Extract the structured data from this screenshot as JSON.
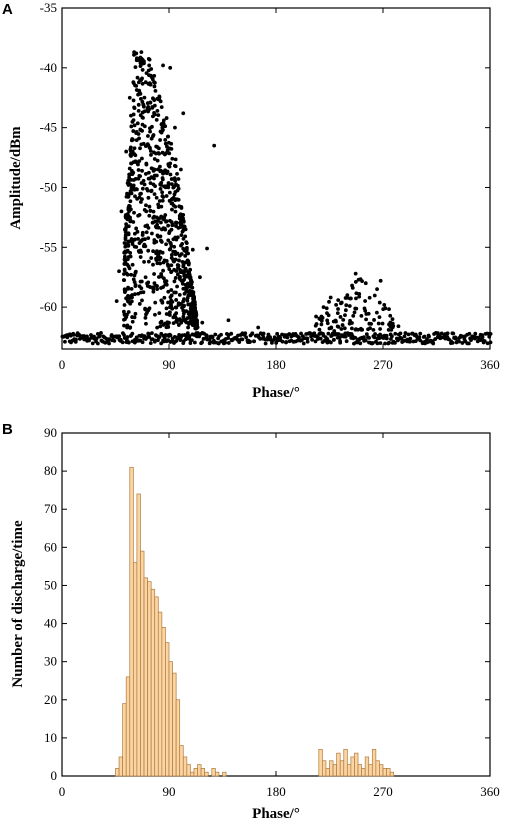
{
  "chart_data": [
    {
      "panel": "A",
      "type": "scatter",
      "xlabel": "Phase/°",
      "ylabel": "Amplitude/dBm",
      "xlim": [
        0,
        360
      ],
      "ylim": [
        -63.5,
        -35
      ],
      "xticks": [
        0,
        90,
        180,
        270,
        360
      ],
      "yticks": [
        -35,
        -40,
        -45,
        -50,
        -55,
        -60
      ],
      "baseline": -62.7,
      "clusters": [
        {
          "phase_range": [
            50,
            120
          ],
          "amplitude_range": [
            -62,
            -38.5
          ],
          "peak_phase": 72
        },
        {
          "phase_range": [
            205,
            280
          ],
          "amplitude_range": [
            -62,
            -57
          ]
        }
      ],
      "points": [
        [
          62,
          -38.8
        ],
        [
          63,
          -39.2
        ],
        [
          66,
          -39.6
        ],
        [
          75,
          -40.1
        ],
        [
          85,
          -39.8
        ],
        [
          91,
          -40.0
        ],
        [
          60,
          -41.2
        ],
        [
          57,
          -42.5
        ],
        [
          58,
          -44.0
        ],
        [
          66,
          -45.2
        ],
        [
          72,
          -43.5
        ],
        [
          83,
          -42.8
        ],
        [
          88,
          -44.2
        ],
        [
          95,
          -45.0
        ],
        [
          100,
          -48.5
        ],
        [
          97,
          -51.0
        ],
        [
          104,
          -53.5
        ],
        [
          110,
          -55.2
        ],
        [
          116,
          -57.5
        ],
        [
          122,
          -55.1
        ],
        [
          128,
          -46.5
        ],
        [
          102,
          -43.8
        ],
        [
          54,
          -47.0
        ],
        [
          50,
          -52.0
        ],
        [
          48,
          -57.0
        ],
        [
          46,
          -59.5
        ],
        [
          53,
          -61.0
        ],
        [
          70,
          -60.2
        ],
        [
          110,
          -61.5
        ],
        [
          113,
          -60.6
        ],
        [
          118,
          -61.3
        ],
        [
          140,
          -61.1
        ],
        [
          165,
          -61.7
        ],
        [
          78,
          -49.0
        ],
        [
          86,
          -52.5
        ],
        [
          92,
          -56.5
        ],
        [
          80,
          -58.5
        ],
        [
          64,
          -54.3
        ],
        [
          68,
          -50.1
        ],
        [
          74,
          -46.7
        ],
        [
          96,
          -59.4
        ],
        [
          106,
          -58.1
        ],
        [
          217,
          -61.0
        ],
        [
          220,
          -60.0
        ],
        [
          226,
          -59.2
        ],
        [
          232,
          -60.5
        ],
        [
          240,
          -59.0
        ],
        [
          244,
          -58.2
        ],
        [
          247,
          -57.2
        ],
        [
          250,
          -58.9
        ],
        [
          255,
          -60.3
        ],
        [
          260,
          -61.4
        ],
        [
          265,
          -58.5
        ],
        [
          268,
          -57.8
        ],
        [
          272,
          -60.1
        ],
        [
          278,
          -61.0
        ],
        [
          283,
          -61.6
        ],
        [
          236,
          -61.5
        ],
        [
          229,
          -62.0
        ]
      ]
    },
    {
      "panel": "B",
      "type": "bar",
      "xlabel": "Phase/°",
      "ylabel": "Number of discharge/time",
      "xlim": [
        0,
        360
      ],
      "ylim": [
        0,
        90
      ],
      "xticks": [
        0,
        90,
        180,
        270,
        360
      ],
      "yticks": [
        0,
        10,
        20,
        30,
        40,
        50,
        60,
        70,
        80,
        90
      ],
      "bin_width": 3,
      "bins": [
        [
          45,
          2
        ],
        [
          48,
          5
        ],
        [
          51,
          19
        ],
        [
          54,
          26
        ],
        [
          57,
          81
        ],
        [
          60,
          56
        ],
        [
          63,
          74
        ],
        [
          66,
          59
        ],
        [
          69,
          52
        ],
        [
          72,
          51
        ],
        [
          75,
          49
        ],
        [
          78,
          47
        ],
        [
          81,
          43
        ],
        [
          84,
          39
        ],
        [
          87,
          35
        ],
        [
          90,
          30
        ],
        [
          93,
          27
        ],
        [
          96,
          20
        ],
        [
          99,
          8
        ],
        [
          102,
          5
        ],
        [
          105,
          3
        ],
        [
          108,
          1
        ],
        [
          111,
          2
        ],
        [
          114,
          3
        ],
        [
          117,
          2
        ],
        [
          120,
          1
        ],
        [
          126,
          2
        ],
        [
          129,
          1
        ],
        [
          135,
          1
        ],
        [
          216,
          7
        ],
        [
          219,
          4
        ],
        [
          222,
          2
        ],
        [
          225,
          4
        ],
        [
          228,
          3
        ],
        [
          231,
          6
        ],
        [
          234,
          4
        ],
        [
          237,
          7
        ],
        [
          240,
          3
        ],
        [
          243,
          5
        ],
        [
          246,
          6
        ],
        [
          249,
          3
        ],
        [
          252,
          2
        ],
        [
          255,
          5
        ],
        [
          258,
          3
        ],
        [
          261,
          7
        ],
        [
          264,
          4
        ],
        [
          267,
          3
        ],
        [
          270,
          2
        ],
        [
          273,
          2
        ],
        [
          276,
          1
        ]
      ]
    }
  ],
  "colors": {
    "scatter_point": "#000000",
    "bar_fill": "#fbd4a3",
    "bar_stroke": "#b07a3a",
    "axis": "#000000"
  }
}
